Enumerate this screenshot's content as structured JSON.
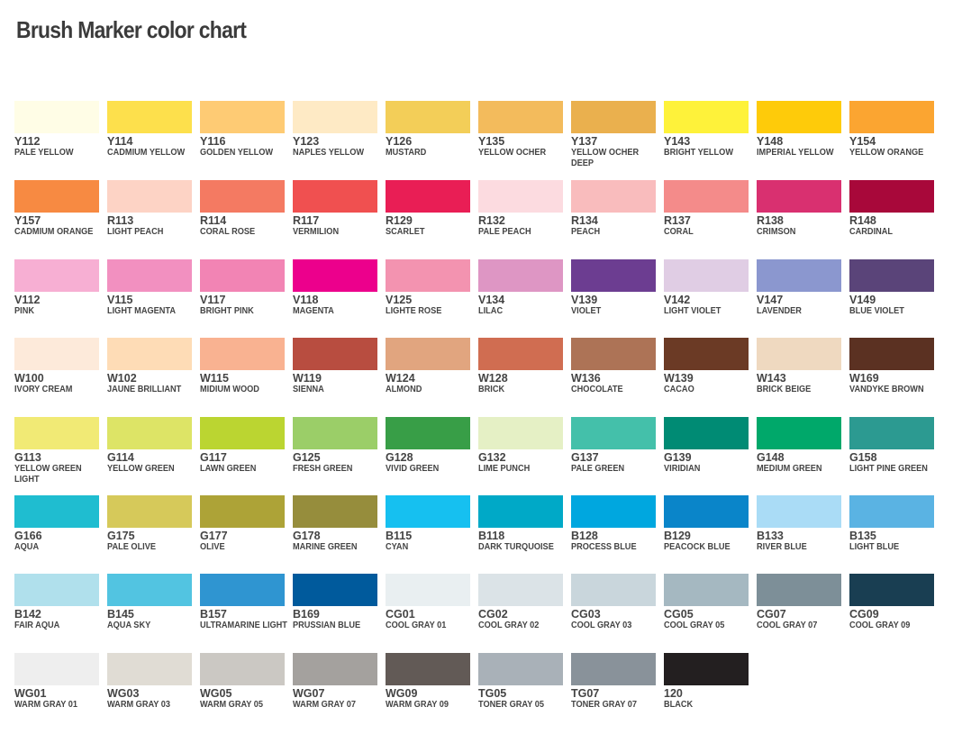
{
  "title": "Brush Marker color chart",
  "colors": [
    {
      "code": "Y112",
      "name": "PALE YELLOW",
      "hex": "#fffde6"
    },
    {
      "code": "Y114",
      "name": "CADMIUM YELLOW",
      "hex": "#fde04c"
    },
    {
      "code": "Y116",
      "name": "GOLDEN YELLOW",
      "hex": "#fecb74"
    },
    {
      "code": "Y123",
      "name": "NAPLES YELLOW",
      "hex": "#feeac5"
    },
    {
      "code": "Y126",
      "name": "MUSTARD",
      "hex": "#f3ce58"
    },
    {
      "code": "Y135",
      "name": "YELLOW OCHER",
      "hex": "#f3bb5c"
    },
    {
      "code": "Y137",
      "name": "YELLOW OCHER DEEP",
      "hex": "#eab04e"
    },
    {
      "code": "Y143",
      "name": "BRIGHT YELLOW",
      "hex": "#fef23a"
    },
    {
      "code": "Y148",
      "name": "IMPERIAL YELLOW",
      "hex": "#fecb0a"
    },
    {
      "code": "Y154",
      "name": "YELLOW ORANGE",
      "hex": "#fba531"
    },
    {
      "code": "Y157",
      "name": "CADMIUM ORANGE",
      "hex": "#f78a42"
    },
    {
      "code": "R113",
      "name": "LIGHT PEACH",
      "hex": "#fdd3c5"
    },
    {
      "code": "R114",
      "name": "CORAL ROSE",
      "hex": "#f47a62"
    },
    {
      "code": "R117",
      "name": "VERMILION",
      "hex": "#f05050"
    },
    {
      "code": "R129",
      "name": "SCARLET",
      "hex": "#e91e55"
    },
    {
      "code": "R132",
      "name": "PALE PEACH",
      "hex": "#fcdbe0"
    },
    {
      "code": "R134",
      "name": "PEACH",
      "hex": "#f9bcbd"
    },
    {
      "code": "R137",
      "name": "CORAL",
      "hex": "#f48b8a"
    },
    {
      "code": "R138",
      "name": "CRIMSON",
      "hex": "#d93070"
    },
    {
      "code": "R148",
      "name": "CARDINAL",
      "hex": "#a8083a"
    },
    {
      "code": "V112",
      "name": "PINK",
      "hex": "#f7afd3"
    },
    {
      "code": "V115",
      "name": "LIGHT MAGENTA",
      "hex": "#f290c0"
    },
    {
      "code": "V117",
      "name": "BRIGHT PINK",
      "hex": "#f284b4"
    },
    {
      "code": "V118",
      "name": "MAGENTA",
      "hex": "#ec008c"
    },
    {
      "code": "V125",
      "name": "LIGHTE ROSE",
      "hex": "#f393b0"
    },
    {
      "code": "V134",
      "name": "LILAC",
      "hex": "#de96c4"
    },
    {
      "code": "V139",
      "name": "VIOLET",
      "hex": "#6c3d91"
    },
    {
      "code": "V142",
      "name": "LIGHT VIOLET",
      "hex": "#e0cde4"
    },
    {
      "code": "V147",
      "name": "LAVENDER",
      "hex": "#8b97cf"
    },
    {
      "code": "V149",
      "name": "BLUE VIOLET",
      "hex": "#5a4479"
    },
    {
      "code": "W100",
      "name": "IVORY CREAM",
      "hex": "#fdeada"
    },
    {
      "code": "W102",
      "name": "JAUNE BRILLIANT",
      "hex": "#fedcb6"
    },
    {
      "code": "W115",
      "name": "MIDIUM WOOD",
      "hex": "#f9b291"
    },
    {
      "code": "W119",
      "name": "SIENNA",
      "hex": "#b84d40"
    },
    {
      "code": "W124",
      "name": "ALMOND",
      "hex": "#e1a57f"
    },
    {
      "code": "W128",
      "name": "BRICK",
      "hex": "#d06d51"
    },
    {
      "code": "W136",
      "name": "CHOCOLATE",
      "hex": "#ad7356"
    },
    {
      "code": "W139",
      "name": "CACAO",
      "hex": "#6b3a25"
    },
    {
      "code": "W143",
      "name": "BRICK BEIGE",
      "hex": "#efd9c0"
    },
    {
      "code": "W169",
      "name": "VANDYKE BROWN",
      "hex": "#5b3122"
    },
    {
      "code": "G113",
      "name": "YELLOW GREEN LIGHT",
      "hex": "#f1ea75"
    },
    {
      "code": "G114",
      "name": "YELLOW GREEN",
      "hex": "#dde466"
    },
    {
      "code": "G117",
      "name": "LAWN GREEN",
      "hex": "#bbd531"
    },
    {
      "code": "G125",
      "name": "FRESH GREEN",
      "hex": "#9bce68"
    },
    {
      "code": "G128",
      "name": "VIVID GREEN",
      "hex": "#389e47"
    },
    {
      "code": "G132",
      "name": "LIME PUNCH",
      "hex": "#e5f0c5"
    },
    {
      "code": "G137",
      "name": "PALE GREEN",
      "hex": "#44c0aa"
    },
    {
      "code": "G139",
      "name": "VIRIDIAN",
      "hex": "#008b74"
    },
    {
      "code": "G148",
      "name": "MEDIUM GREEN",
      "hex": "#00a86a"
    },
    {
      "code": "G158",
      "name": "LIGHT PINE GREEN",
      "hex": "#2c9a91"
    },
    {
      "code": "G166",
      "name": "AQUA",
      "hex": "#1fbdd0"
    },
    {
      "code": "G175",
      "name": "PALE OLIVE",
      "hex": "#d6c95a"
    },
    {
      "code": "G177",
      "name": "OLIVE",
      "hex": "#ada337"
    },
    {
      "code": "G178",
      "name": "MARINE GREEN",
      "hex": "#968d3c"
    },
    {
      "code": "B115",
      "name": "CYAN",
      "hex": "#16c0f0"
    },
    {
      "code": "B118",
      "name": "DARK TURQUOISE",
      "hex": "#00a9c7"
    },
    {
      "code": "B128",
      "name": "PROCESS BLUE",
      "hex": "#00a7df"
    },
    {
      "code": "B129",
      "name": "PEACOCK BLUE",
      "hex": "#0a85c9"
    },
    {
      "code": "B133",
      "name": "RIVER BLUE",
      "hex": "#aadcf6"
    },
    {
      "code": "B135",
      "name": "LIGHT BLUE",
      "hex": "#5ab3e3"
    },
    {
      "code": "B142",
      "name": "FAIR AQUA",
      "hex": "#b0e0ec"
    },
    {
      "code": "B145",
      "name": "AQUA SKY",
      "hex": "#52c4e1"
    },
    {
      "code": "B157",
      "name": "ULTRAMARINE LIGHT",
      "hex": "#2f95d1"
    },
    {
      "code": "B169",
      "name": "PRUSSIAN BLUE",
      "hex": "#005a9c"
    },
    {
      "code": "CG01",
      "name": "COOL GRAY 01",
      "hex": "#e9eff1"
    },
    {
      "code": "CG02",
      "name": "COOL GRAY 02",
      "hex": "#dbe3e7"
    },
    {
      "code": "CG03",
      "name": "COOL GRAY 03",
      "hex": "#c9d6dc"
    },
    {
      "code": "CG05",
      "name": "COOL GRAY 05",
      "hex": "#a5b8c1"
    },
    {
      "code": "CG07",
      "name": "COOL GRAY 07",
      "hex": "#7d8f98"
    },
    {
      "code": "CG09",
      "name": "COOL GRAY 09",
      "hex": "#193e52"
    },
    {
      "code": "WG01",
      "name": "WARM GRAY 01",
      "hex": "#eeeeee"
    },
    {
      "code": "WG03",
      "name": "WARM GRAY 03",
      "hex": "#e0dcd4"
    },
    {
      "code": "WG05",
      "name": "WARM GRAY 05",
      "hex": "#cbc8c3"
    },
    {
      "code": "WG07",
      "name": "WARM GRAY 07",
      "hex": "#a4a19e"
    },
    {
      "code": "WG09",
      "name": "WARM GRAY 09",
      "hex": "#625a56"
    },
    {
      "code": "TG05",
      "name": "TONER GRAY 05",
      "hex": "#a9b1b8"
    },
    {
      "code": "TG07",
      "name": "TONER GRAY 07",
      "hex": "#89929a"
    },
    {
      "code": "120",
      "name": "BLACK",
      "hex": "#231f20"
    }
  ]
}
